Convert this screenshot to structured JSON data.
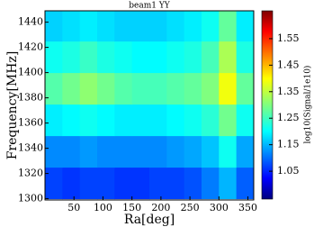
{
  "chart_data": {
    "type": "heatmap",
    "title": "beam1 YY",
    "xlabel": "Ra[deg]",
    "ylabel": "Frequency[MHz]",
    "colorbar_label": "log10(Signal/1e10)",
    "colormap": "jet",
    "x_edges": [
      0,
      30,
      60,
      90,
      120,
      150,
      180,
      210,
      240,
      270,
      300,
      330,
      360
    ],
    "y_edges": [
      1300,
      1325,
      1350,
      1375,
      1400,
      1425,
      1450
    ],
    "z": [
      [
        1.08,
        1.07,
        1.08,
        1.08,
        1.07,
        1.07,
        1.08,
        1.08,
        1.09,
        1.12,
        1.16,
        1.1
      ],
      [
        1.13,
        1.13,
        1.14,
        1.13,
        1.13,
        1.13,
        1.13,
        1.14,
        1.15,
        1.17,
        1.22,
        1.15
      ],
      [
        1.2,
        1.21,
        1.22,
        1.21,
        1.2,
        1.2,
        1.2,
        1.21,
        1.22,
        1.24,
        1.29,
        1.22
      ],
      [
        1.27,
        1.29,
        1.31,
        1.29,
        1.27,
        1.26,
        1.26,
        1.27,
        1.28,
        1.3,
        1.38,
        1.28
      ],
      [
        1.22,
        1.23,
        1.25,
        1.23,
        1.22,
        1.21,
        1.21,
        1.22,
        1.23,
        1.26,
        1.33,
        1.23
      ],
      [
        1.18,
        1.19,
        1.2,
        1.19,
        1.18,
        1.18,
        1.18,
        1.19,
        1.2,
        1.22,
        1.28,
        1.2
      ]
    ],
    "xlim": [
      0,
      360
    ],
    "xticks": [
      50,
      100,
      150,
      200,
      250,
      300,
      350
    ],
    "ylim": [
      1299,
      1449
    ],
    "yticks": [
      1300,
      1320,
      1340,
      1360,
      1380,
      1400,
      1420,
      1440
    ],
    "clim": [
      0.945,
      1.655
    ],
    "cticks": [
      1.05,
      1.15,
      1.25,
      1.35,
      1.45,
      1.55
    ]
  }
}
